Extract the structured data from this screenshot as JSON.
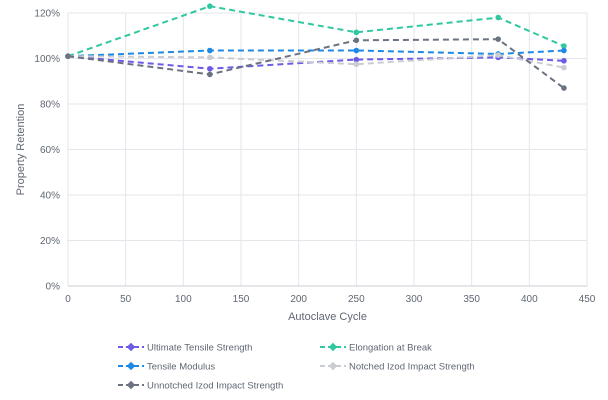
{
  "chart_data": {
    "type": "line",
    "xlabel": "Autoclave Cycle",
    "ylabel": "Property Retention",
    "xlim": [
      0,
      450
    ],
    "ylim": [
      0,
      120
    ],
    "x_ticks": [
      0,
      50,
      100,
      150,
      200,
      250,
      300,
      350,
      400,
      450
    ],
    "y_ticks": [
      0,
      20,
      40,
      60,
      80,
      100,
      120
    ],
    "y_tick_labels": [
      "0%",
      "20%",
      "40%",
      "60%",
      "80%",
      "100%",
      "120%"
    ],
    "grid": true,
    "legend_position": "bottom",
    "series": [
      {
        "name": "Ultimate Tensile Strength",
        "color": "#6b5be6",
        "x": [
          0,
          123,
          250,
          373,
          430
        ],
        "y": [
          101,
          95.5,
          99.5,
          100.5,
          99
        ]
      },
      {
        "name": "Elongation at Break",
        "color": "#2fc8a0",
        "x": [
          0,
          123,
          250,
          373,
          430
        ],
        "y": [
          101,
          123,
          111.5,
          118,
          105.5
        ]
      },
      {
        "name": "Tensile Modulus",
        "color": "#1e88e5",
        "x": [
          0,
          123,
          250,
          373,
          430
        ],
        "y": [
          101,
          103.5,
          103.5,
          102,
          103.5
        ]
      },
      {
        "name": "Notched Izod Impact Strength",
        "color": "#c9ccd1",
        "x": [
          0,
          123,
          250,
          373,
          430
        ],
        "y": [
          101,
          100.5,
          97.5,
          101.5,
          96
        ]
      },
      {
        "name": "Unnotched Izod Impact Strength",
        "color": "#6c7380",
        "x": [
          0,
          123,
          250,
          373,
          430
        ],
        "y": [
          101,
          93,
          108,
          108.5,
          87
        ]
      }
    ]
  }
}
